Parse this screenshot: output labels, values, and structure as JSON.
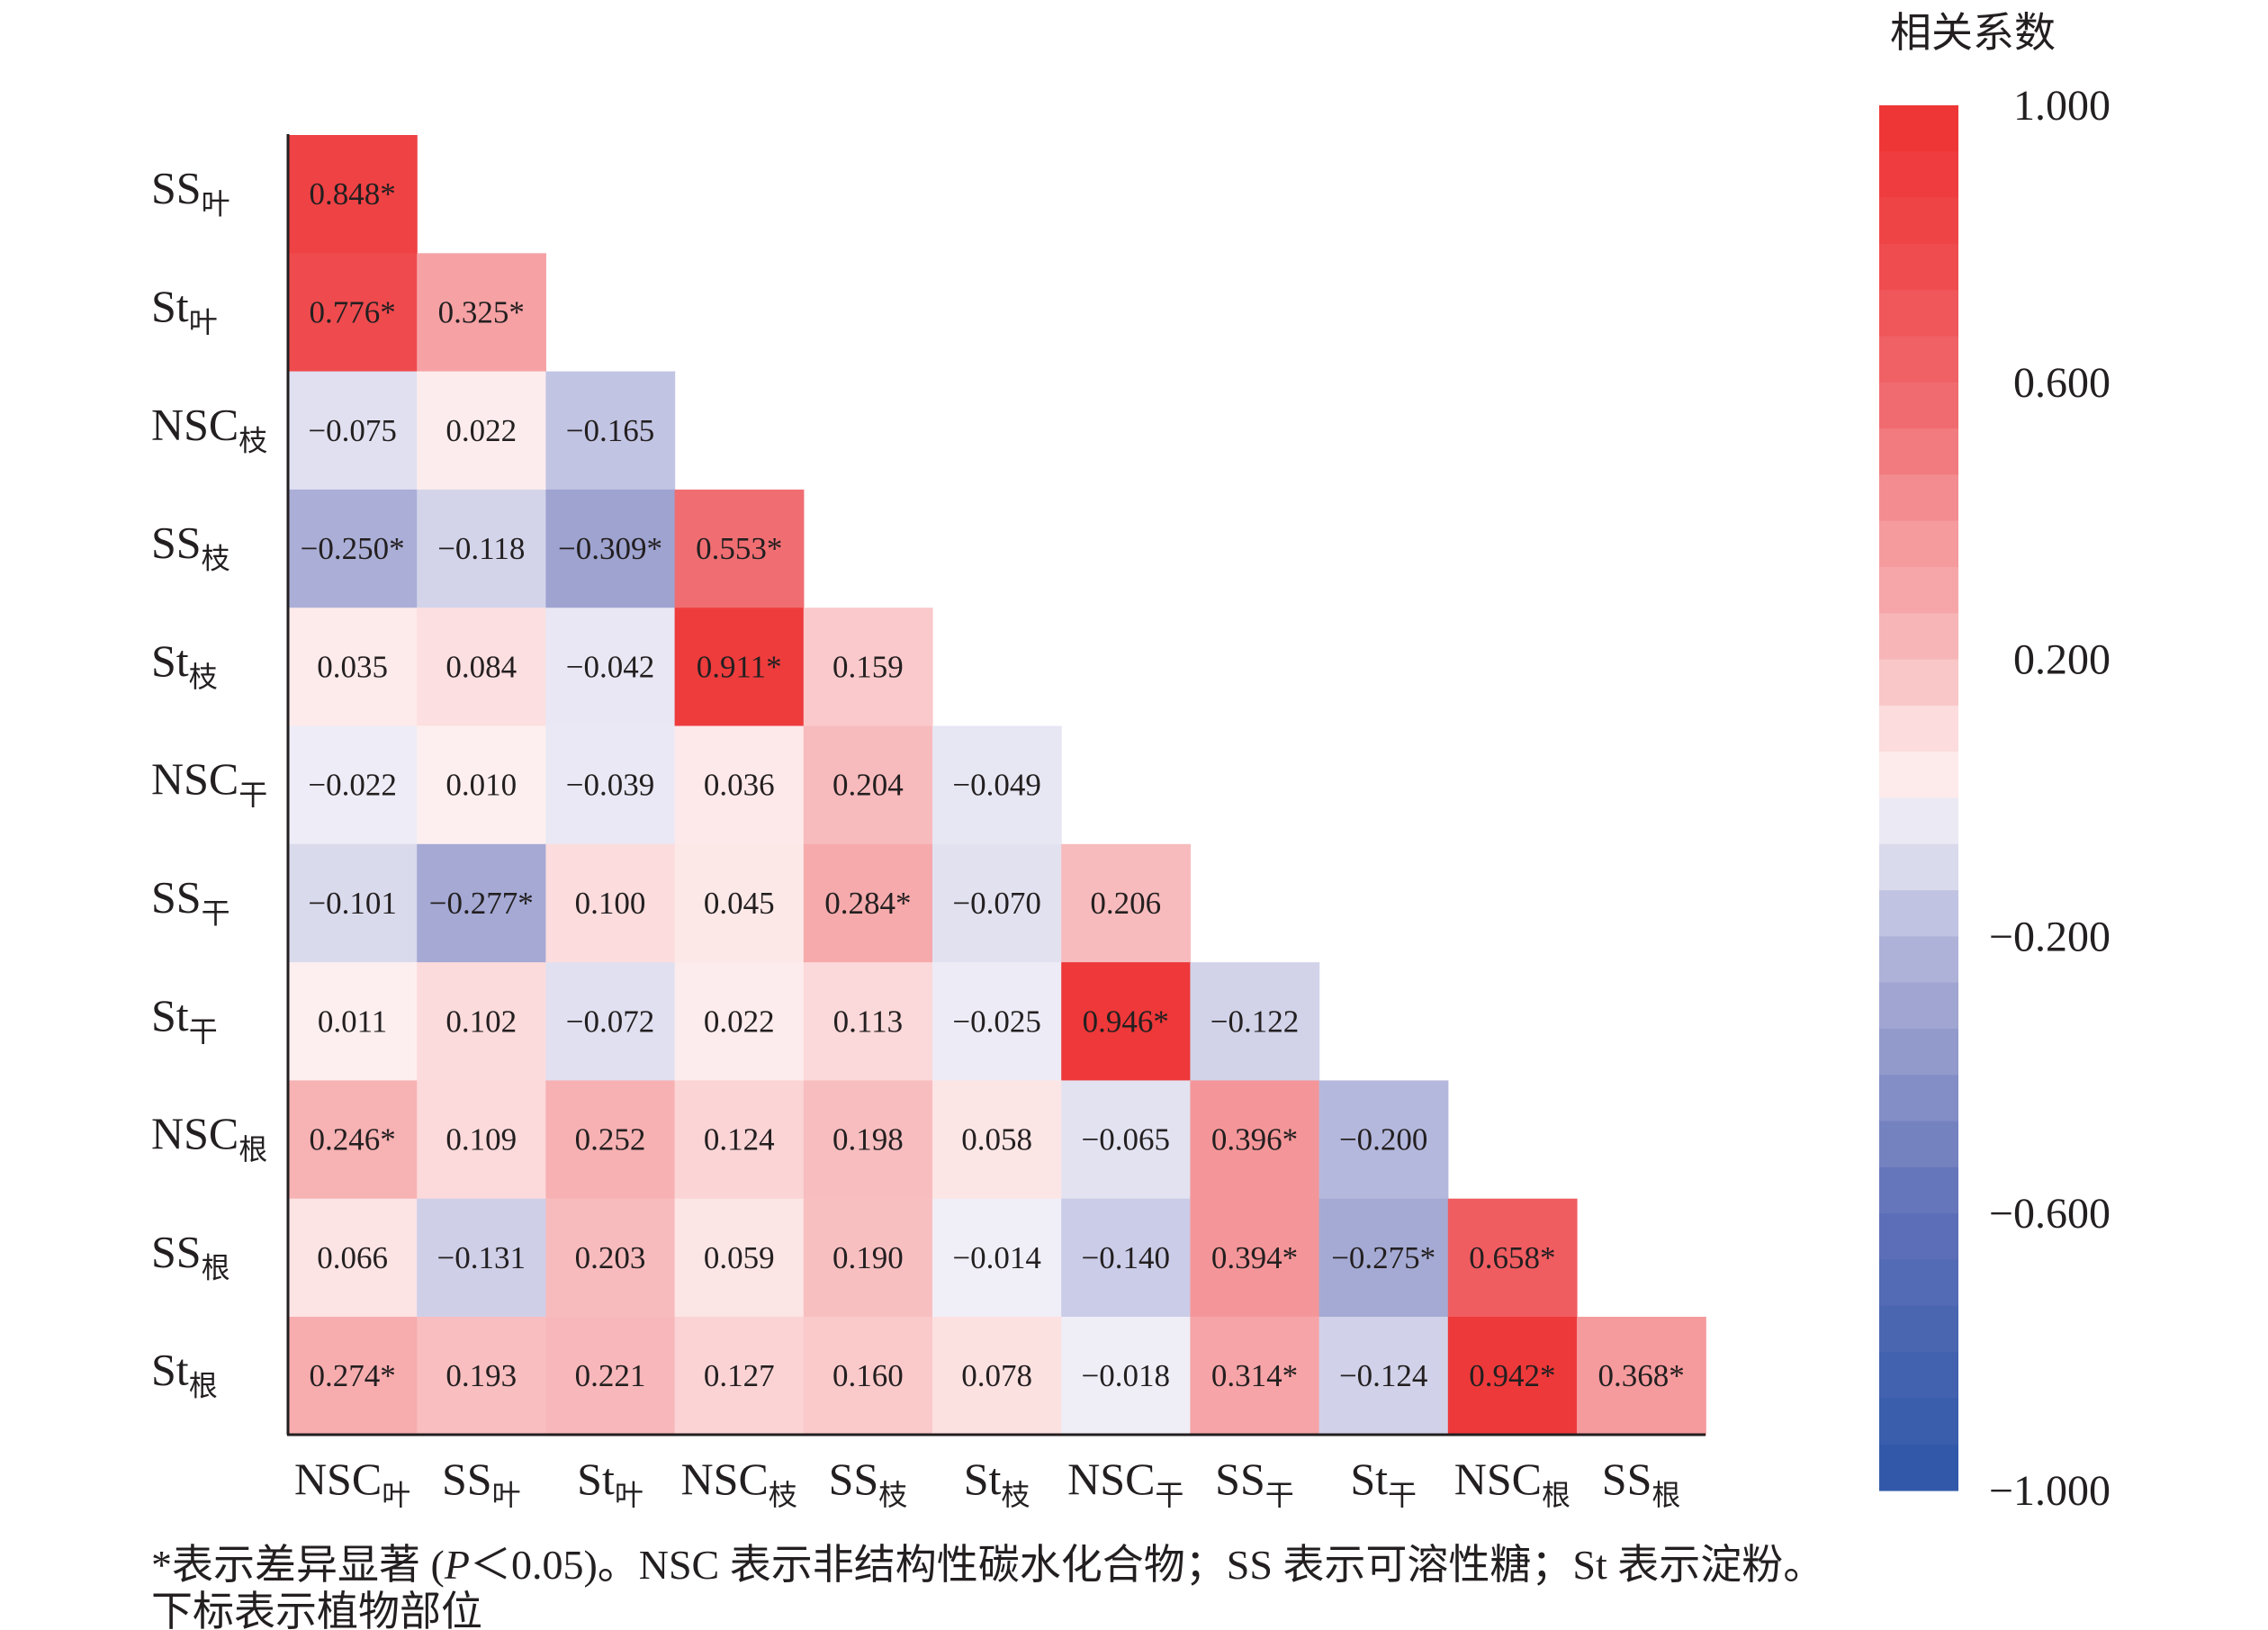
{
  "chart_data": {
    "type": "heatmap",
    "title": "",
    "colorbar_title": "相关系数",
    "colorbar_ticks": [
      "1.000",
      "0.600",
      "0.200",
      "−0.200",
      "−0.600",
      "−1.000"
    ],
    "colorbar_range": [
      -1,
      1
    ],
    "colors": {
      "max": "#EE3333",
      "zero": "#FFFFFF",
      "min": "#2E57A8"
    },
    "row_labels": [
      {
        "main": "SS",
        "sub": "叶"
      },
      {
        "main": "St",
        "sub": "叶"
      },
      {
        "main": "NSC",
        "sub": "枝"
      },
      {
        "main": "SS",
        "sub": "枝"
      },
      {
        "main": "St",
        "sub": "枝"
      },
      {
        "main": "NSC",
        "sub": "干"
      },
      {
        "main": "SS",
        "sub": "干"
      },
      {
        "main": "St",
        "sub": "干"
      },
      {
        "main": "NSC",
        "sub": "根"
      },
      {
        "main": "SS",
        "sub": "根"
      },
      {
        "main": "St",
        "sub": "根"
      }
    ],
    "col_labels": [
      {
        "main": "NSC",
        "sub": "叶"
      },
      {
        "main": "SS",
        "sub": "叶"
      },
      {
        "main": "St",
        "sub": "叶"
      },
      {
        "main": "NSC",
        "sub": "枝"
      },
      {
        "main": "SS",
        "sub": "枝"
      },
      {
        "main": "St",
        "sub": "枝"
      },
      {
        "main": "NSC",
        "sub": "干"
      },
      {
        "main": "SS",
        "sub": "干"
      },
      {
        "main": "St",
        "sub": "干"
      },
      {
        "main": "NSC",
        "sub": "根"
      },
      {
        "main": "SS",
        "sub": "根"
      }
    ],
    "values": [
      [
        "0.848*"
      ],
      [
        "0.776*",
        "0.325*"
      ],
      [
        "−0.075",
        "0.022",
        "−0.165"
      ],
      [
        "−0.250*",
        "−0.118",
        "−0.309*",
        "0.553*"
      ],
      [
        "0.035",
        "0.084",
        "−0.042",
        "0.911*",
        "0.159"
      ],
      [
        "−0.022",
        "0.010",
        "−0.039",
        "0.036",
        "0.204",
        "−0.049"
      ],
      [
        "−0.101",
        "−0.277*",
        "0.100",
        "0.045",
        "0.284*",
        "−0.070",
        "0.206"
      ],
      [
        "0.011",
        "0.102",
        "−0.072",
        "0.022",
        "0.113",
        "−0.025",
        "0.946*",
        "−0.122"
      ],
      [
        "0.246*",
        "0.109",
        "0.252",
        "0.124",
        "0.198",
        "0.058",
        "−0.065",
        "0.396*",
        "−0.200"
      ],
      [
        "0.066",
        "−0.131",
        "0.203",
        "0.059",
        "0.190",
        "−0.014",
        "−0.140",
        "0.394*",
        "−0.275*",
        "0.658*"
      ],
      [
        "0.274*",
        "0.193",
        "0.221",
        "0.127",
        "0.160",
        "0.078",
        "−0.018",
        "0.314*",
        "−0.124",
        "0.942*",
        "0.368*"
      ]
    ]
  },
  "footnote": {
    "line1_a": "*表示差异显著 (",
    "line1_p": "P",
    "line1_b": "＜0.05)。NSC 表示非结构性碳水化合物；SS 表示可溶性糖；St 表示淀粉。",
    "line2": "下标表示植物部位"
  }
}
